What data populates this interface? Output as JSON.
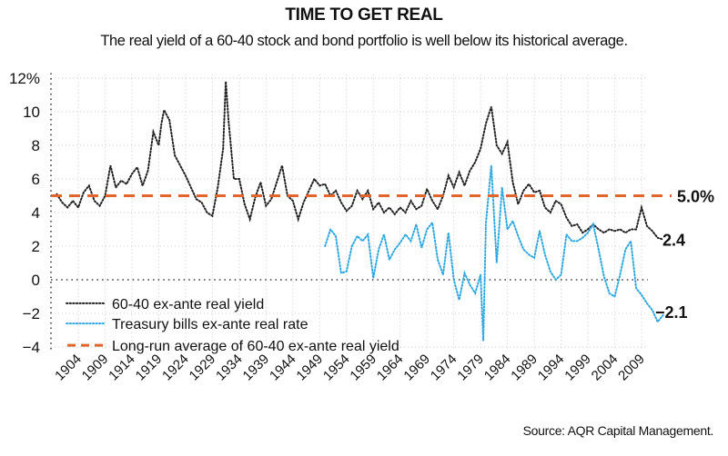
{
  "header": {
    "title": "TIME TO GET REAL",
    "subtitle": "The real yield of a 60-40 stock and bond portfolio is well below its historical average."
  },
  "footer": {
    "source": "Source: AQR Capital Management."
  },
  "colors": {
    "portfolio": "#222222",
    "tbills": "#2fa8e0",
    "average": "#e0642c",
    "grid": "#c8c8c8"
  },
  "chart_data": {
    "type": "line",
    "title": "TIME TO GET REAL",
    "subtitle": "The real yield of a 60-40 stock and bond portfolio is well below its historical average.",
    "xlabel": "",
    "ylabel": "",
    "xlim": [
      1900,
      2014
    ],
    "ylim": [
      -4,
      12
    ],
    "grid": true,
    "legend_position": "bottom-left",
    "y_ticks": [
      {
        "value": 12,
        "label": "12%"
      },
      {
        "value": 10,
        "label": "10"
      },
      {
        "value": 8,
        "label": "8"
      },
      {
        "value": 6,
        "label": "6"
      },
      {
        "value": 4,
        "label": "4"
      },
      {
        "value": 2,
        "label": "2"
      },
      {
        "value": 0,
        "label": "0"
      },
      {
        "value": -2,
        "label": "−2"
      },
      {
        "value": -4,
        "label": "−4"
      }
    ],
    "x_ticks": [
      "1904",
      "1909",
      "1914",
      "1919",
      "1924",
      "1929",
      "1934",
      "1939",
      "1944",
      "1949",
      "1954",
      "1959",
      "1964",
      "1969",
      "1974",
      "1979",
      "1984",
      "1989",
      "1994",
      "1999",
      "2004",
      "2009"
    ],
    "series": [
      {
        "name": "60-40 ex-ante real yield",
        "style": "dotted",
        "color": "#222222",
        "end_label": "2.4",
        "points": [
          [
            1900,
            5.1
          ],
          [
            1901,
            4.6
          ],
          [
            1902,
            4.3
          ],
          [
            1903,
            4.7
          ],
          [
            1904,
            4.3
          ],
          [
            1905,
            5.2
          ],
          [
            1906,
            5.6
          ],
          [
            1907,
            4.7
          ],
          [
            1908,
            4.4
          ],
          [
            1909,
            5.0
          ],
          [
            1910,
            6.8
          ],
          [
            1911,
            5.5
          ],
          [
            1912,
            5.9
          ],
          [
            1913,
            5.7
          ],
          [
            1914,
            6.3
          ],
          [
            1915,
            6.7
          ],
          [
            1916,
            5.6
          ],
          [
            1917,
            6.5
          ],
          [
            1918,
            8.8
          ],
          [
            1919,
            8.0
          ],
          [
            1919.5,
            9.3
          ],
          [
            1920,
            10.1
          ],
          [
            1921,
            9.5
          ],
          [
            1922,
            7.4
          ],
          [
            1923,
            6.8
          ],
          [
            1924,
            6.2
          ],
          [
            1925,
            5.5
          ],
          [
            1926,
            4.8
          ],
          [
            1927,
            4.6
          ],
          [
            1928,
            4.0
          ],
          [
            1929,
            3.8
          ],
          [
            1930,
            5.5
          ],
          [
            1931,
            7.8
          ],
          [
            1931.5,
            11.8
          ],
          [
            1932,
            9.5
          ],
          [
            1933,
            6.0
          ],
          [
            1934,
            6.0
          ],
          [
            1935,
            4.5
          ],
          [
            1936,
            3.6
          ],
          [
            1937,
            4.9
          ],
          [
            1938,
            5.8
          ],
          [
            1939,
            4.4
          ],
          [
            1940,
            4.8
          ],
          [
            1941,
            5.8
          ],
          [
            1942,
            6.8
          ],
          [
            1943,
            5.0
          ],
          [
            1944,
            4.7
          ],
          [
            1945,
            3.6
          ],
          [
            1946,
            4.6
          ],
          [
            1947,
            5.3
          ],
          [
            1948,
            6.0
          ],
          [
            1949,
            5.6
          ],
          [
            1950,
            5.7
          ],
          [
            1951,
            5.0
          ],
          [
            1952,
            5.3
          ],
          [
            1953,
            4.6
          ],
          [
            1954,
            4.1
          ],
          [
            1955,
            4.4
          ],
          [
            1956,
            5.3
          ],
          [
            1957,
            4.8
          ],
          [
            1958,
            5.3
          ],
          [
            1959,
            4.2
          ],
          [
            1960,
            4.6
          ],
          [
            1961,
            4.0
          ],
          [
            1962,
            4.3
          ],
          [
            1963,
            3.9
          ],
          [
            1964,
            4.3
          ],
          [
            1965,
            4.0
          ],
          [
            1966,
            4.7
          ],
          [
            1967,
            4.2
          ],
          [
            1968,
            4.4
          ],
          [
            1969,
            5.4
          ],
          [
            1970,
            4.7
          ],
          [
            1971,
            4.2
          ],
          [
            1972,
            5.0
          ],
          [
            1973,
            6.2
          ],
          [
            1974,
            5.5
          ],
          [
            1975,
            6.4
          ],
          [
            1976,
            5.6
          ],
          [
            1977,
            6.5
          ],
          [
            1978,
            7.0
          ],
          [
            1979,
            7.8
          ],
          [
            1980,
            9.3
          ],
          [
            1981,
            10.3
          ],
          [
            1982,
            8.0
          ],
          [
            1983,
            7.5
          ],
          [
            1984,
            8.2
          ],
          [
            1985,
            5.8
          ],
          [
            1986,
            4.5
          ],
          [
            1987,
            5.3
          ],
          [
            1988,
            5.7
          ],
          [
            1989,
            5.2
          ],
          [
            1990,
            5.3
          ],
          [
            1991,
            4.3
          ],
          [
            1992,
            4.0
          ],
          [
            1993,
            4.7
          ],
          [
            1994,
            4.5
          ],
          [
            1995,
            3.7
          ],
          [
            1996,
            3.2
          ],
          [
            1997,
            3.3
          ],
          [
            1998,
            2.8
          ],
          [
            1999,
            3.0
          ],
          [
            2000,
            3.3
          ],
          [
            2001,
            3.0
          ],
          [
            2002,
            2.8
          ],
          [
            2003,
            3.0
          ],
          [
            2004,
            2.9
          ],
          [
            2005,
            3.0
          ],
          [
            2006,
            2.8
          ],
          [
            2007,
            3.0
          ],
          [
            2008,
            3.0
          ],
          [
            2009,
            4.3
          ],
          [
            2010,
            3.2
          ],
          [
            2011,
            2.9
          ],
          [
            2012,
            2.5
          ],
          [
            2013,
            2.4
          ]
        ]
      },
      {
        "name": "Treasury bills ex-ante real rate",
        "style": "dotted",
        "color": "#2fa8e0",
        "end_label": "−2.1",
        "points": [
          [
            1950,
            2.0
          ],
          [
            1951,
            3.0
          ],
          [
            1952,
            2.6
          ],
          [
            1953,
            0.4
          ],
          [
            1954,
            0.5
          ],
          [
            1955,
            2.0
          ],
          [
            1956,
            2.6
          ],
          [
            1957,
            2.3
          ],
          [
            1958,
            2.7
          ],
          [
            1959,
            0.1
          ],
          [
            1960,
            1.8
          ],
          [
            1961,
            2.7
          ],
          [
            1962,
            1.2
          ],
          [
            1963,
            1.8
          ],
          [
            1964,
            2.2
          ],
          [
            1965,
            2.7
          ],
          [
            1966,
            2.3
          ],
          [
            1967,
            3.3
          ],
          [
            1968,
            1.9
          ],
          [
            1969,
            3.0
          ],
          [
            1970,
            3.4
          ],
          [
            1971,
            1.2
          ],
          [
            1972,
            0.3
          ],
          [
            1973,
            2.8
          ],
          [
            1974,
            0.0
          ],
          [
            1975,
            -1.2
          ],
          [
            1976,
            0.4
          ],
          [
            1977,
            -0.3
          ],
          [
            1978,
            -0.8
          ],
          [
            1979,
            0.3
          ],
          [
            1979.5,
            -3.6
          ],
          [
            1980,
            3.4
          ],
          [
            1981,
            6.8
          ],
          [
            1982,
            1.0
          ],
          [
            1983,
            5.5
          ],
          [
            1984,
            3.0
          ],
          [
            1985,
            3.5
          ],
          [
            1986,
            2.6
          ],
          [
            1987,
            1.8
          ],
          [
            1988,
            1.5
          ],
          [
            1989,
            1.3
          ],
          [
            1990,
            2.9
          ],
          [
            1991,
            1.5
          ],
          [
            1992,
            0.5
          ],
          [
            1993,
            0.0
          ],
          [
            1994,
            0.3
          ],
          [
            1995,
            2.7
          ],
          [
            1996,
            2.3
          ],
          [
            1997,
            2.3
          ],
          [
            1998,
            2.5
          ],
          [
            1999,
            2.8
          ],
          [
            2000,
            3.3
          ],
          [
            2001,
            1.8
          ],
          [
            2002,
            0.2
          ],
          [
            2003,
            -0.8
          ],
          [
            2004,
            -1.0
          ],
          [
            2005,
            0.3
          ],
          [
            2006,
            1.8
          ],
          [
            2007,
            2.3
          ],
          [
            2008,
            -0.5
          ],
          [
            2009,
            -0.9
          ],
          [
            2010,
            -1.4
          ],
          [
            2011,
            -1.8
          ],
          [
            2012,
            -2.5
          ],
          [
            2013,
            -2.1
          ]
        ]
      },
      {
        "name": "Long-run average of 60-40 ex-ante real yield",
        "style": "dashed",
        "color": "#e0642c",
        "end_label": "5.0%",
        "constant": 5.0
      }
    ]
  }
}
